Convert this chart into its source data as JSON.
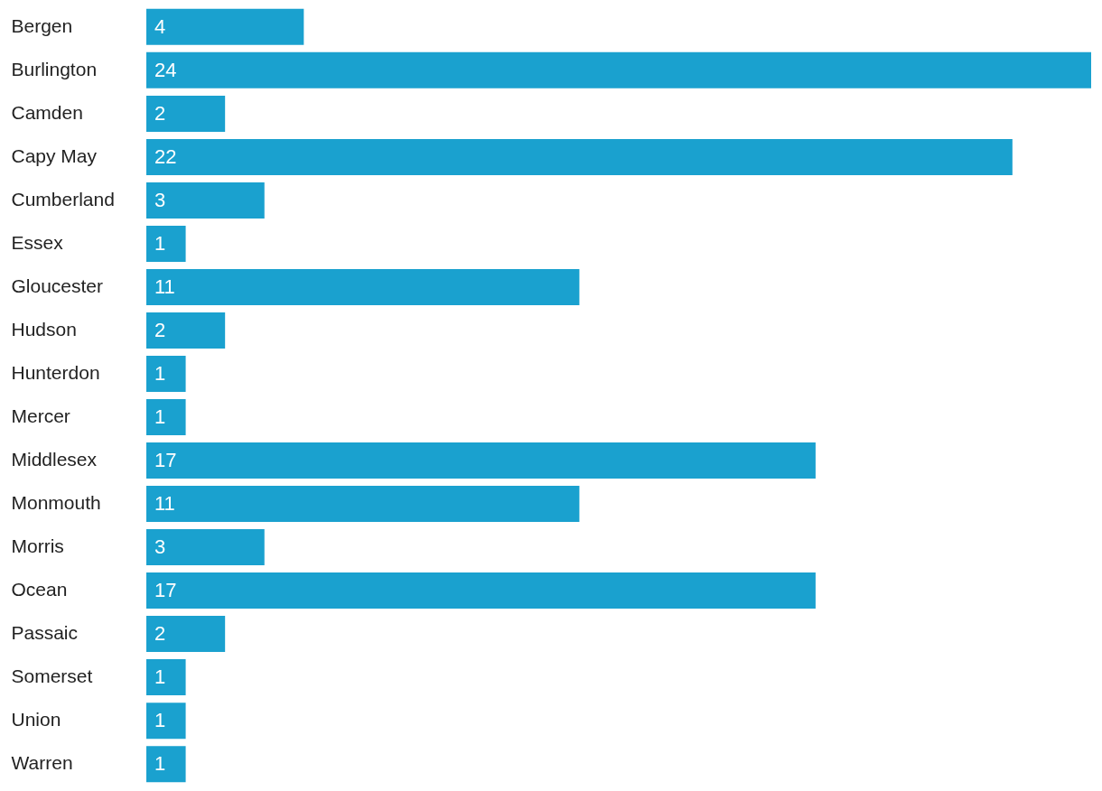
{
  "chart_data": {
    "type": "bar",
    "orientation": "horizontal",
    "categories": [
      "Bergen",
      "Burlington",
      "Camden",
      "Capy May",
      "Cumberland",
      "Essex",
      "Gloucester",
      "Hudson",
      "Hunterdon",
      "Mercer",
      "Middlesex",
      "Monmouth",
      "Morris",
      "Ocean",
      "Passaic",
      "Somerset",
      "Union",
      "Warren"
    ],
    "values": [
      4,
      24,
      2,
      22,
      3,
      1,
      11,
      2,
      1,
      1,
      17,
      11,
      3,
      17,
      2,
      1,
      1,
      1
    ],
    "color": "#1aa1cf",
    "xlim": [
      0,
      24
    ],
    "data_labels": true,
    "tick_labels": "y"
  }
}
